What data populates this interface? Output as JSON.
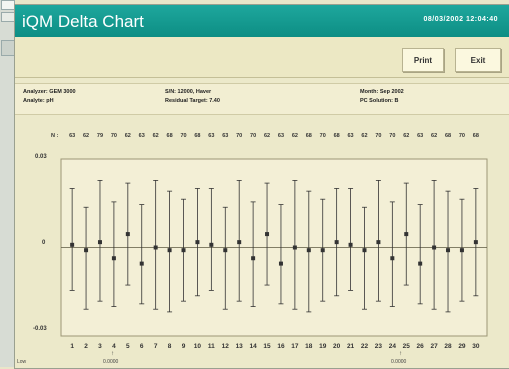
{
  "window": {
    "title": "iQM Delta Chart",
    "datetime": "08/03/2002 12:04:40"
  },
  "toolbar": {
    "print_label": "Print",
    "exit_label": "Exit"
  },
  "info": {
    "analyzer": "Analyzer: GEM 3000",
    "analyte": "Analyte: pH",
    "sn": "S/N: 12000, Haver",
    "residual_target": "Residual Target: 7.40",
    "month": "Month: Sep 2002",
    "pc_solution": "PC Solution: B"
  },
  "chart_data": {
    "type": "scatter",
    "title": "",
    "xlabel": "",
    "ylabel": "",
    "n_label": "N :",
    "n_values": [
      "63",
      "62",
      "79",
      "70",
      "62",
      "63",
      "62",
      "68",
      "70",
      "68",
      "63",
      "63",
      "70",
      "70",
      "62",
      "63",
      "62",
      "68",
      "70",
      "68",
      "63",
      "62",
      "70",
      "70",
      "62",
      "63",
      "62",
      "68",
      "70",
      "68"
    ],
    "x": [
      1,
      2,
      3,
      4,
      5,
      6,
      7,
      8,
      9,
      10,
      11,
      12,
      13,
      14,
      15,
      16,
      17,
      18,
      19,
      20,
      21,
      22,
      23,
      24,
      25,
      26,
      27,
      28,
      29,
      30
    ],
    "x_tick_labels": [
      "1",
      "2",
      "3",
      "4",
      "5",
      "6",
      "7",
      "8",
      "9",
      "10",
      "11",
      "12",
      "13",
      "14",
      "15",
      "16",
      "17",
      "18",
      "19",
      "20",
      "21",
      "22",
      "23",
      "24",
      "25",
      "26",
      "27",
      "28",
      "29",
      "30"
    ],
    "y_tick_labels": [
      "0.03",
      "0",
      "-0.03"
    ],
    "ylim": [
      -0.03,
      0.03
    ],
    "series": [
      {
        "values": [
          0.001,
          -0.001,
          0.002,
          -0.004,
          0.005,
          -0.006,
          0.0,
          -0.001,
          -0.001,
          0.002,
          0.001,
          -0.001,
          0.002,
          -0.004,
          0.005,
          -0.006,
          0.0,
          -0.001,
          -0.001,
          0.002,
          0.001,
          -0.001,
          0.002,
          -0.004,
          0.005,
          -0.006,
          0.0,
          -0.001,
          -0.001,
          0.002
        ],
        "error_low": [
          -0.016,
          -0.023,
          -0.02,
          -0.022,
          -0.014,
          -0.021,
          -0.023,
          -0.024,
          -0.02,
          -0.018,
          -0.016,
          -0.023,
          -0.02,
          -0.022,
          -0.014,
          -0.021,
          -0.023,
          -0.024,
          -0.02,
          -0.018,
          -0.016,
          -0.023,
          -0.02,
          -0.022,
          -0.014,
          -0.021,
          -0.023,
          -0.024,
          -0.02,
          -0.018
        ],
        "error_high": [
          0.022,
          0.015,
          0.025,
          0.017,
          0.024,
          0.016,
          0.025,
          0.021,
          0.018,
          0.022,
          0.022,
          0.015,
          0.025,
          0.017,
          0.024,
          0.016,
          0.025,
          0.021,
          0.018,
          0.022,
          0.022,
          0.015,
          0.025,
          0.017,
          0.024,
          0.016,
          0.025,
          0.021,
          0.018,
          0.022
        ]
      }
    ],
    "grid": false
  },
  "footer": {
    "left_text": "Low",
    "marker1_text": "0.0000",
    "marker2_text": "0.0000"
  },
  "colors": {
    "titlebar": "#12968c",
    "background": "#ece9ca",
    "plot_border": "#9c9675",
    "marks": "#333333"
  }
}
